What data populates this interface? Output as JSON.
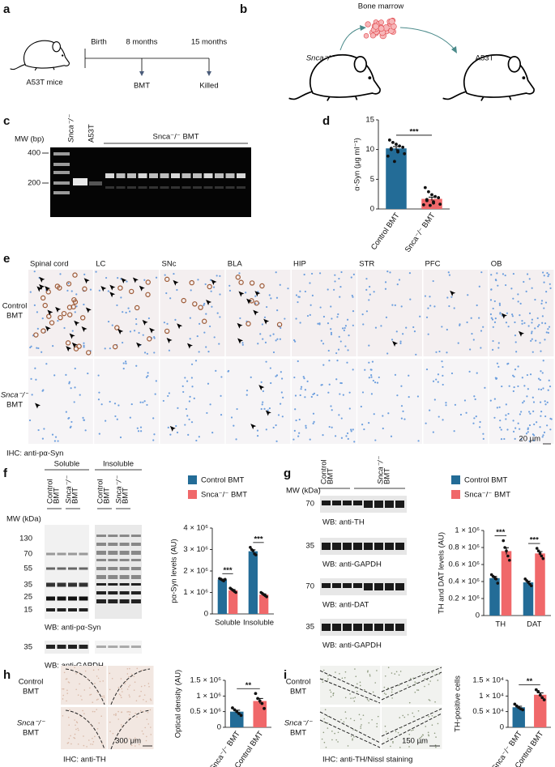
{
  "panel_labels": [
    "a",
    "b",
    "c",
    "d",
    "e",
    "f",
    "g",
    "h",
    "i"
  ],
  "a": {
    "mouse_label": "A53T mice",
    "timeline": [
      {
        "top": "Birth"
      },
      {
        "top": "8 months",
        "bottom": "BMT"
      },
      {
        "top": "15 months",
        "bottom": "Killed"
      }
    ]
  },
  "b": {
    "source": "Bone marrow",
    "donor": "Snca⁻/⁻",
    "recipient": "A53T"
  },
  "c": {
    "axis_label": "MW (bp)",
    "markers": [
      400,
      200
    ],
    "lanes": [
      "Snca⁻/⁻",
      "A53T"
    ],
    "group": "Snca⁻/⁻ BMT"
  },
  "e": {
    "regions": [
      "Spinal cord",
      "LC",
      "SNc",
      "BLA",
      "HIP",
      "STR",
      "PFC",
      "OB"
    ],
    "rows": [
      [
        "Control",
        "BMT"
      ],
      [
        "Snca⁻/⁻",
        "BMT"
      ]
    ],
    "caption": "IHC: anti-pα-Syn",
    "scale": "20 μm"
  },
  "f": {
    "groups": [
      "Soluble",
      "Insoluble"
    ],
    "lanes": [
      [
        "Control",
        "BMT"
      ],
      [
        "Snca⁻/⁻",
        "BMT"
      ]
    ],
    "axis_label": "MW (kDa)",
    "markers": [
      130,
      70,
      55,
      35,
      25,
      15
    ],
    "gapdh_marker": 35,
    "captions": [
      "WB: anti-pα-Syn",
      "WB: anti-GAPDH"
    ]
  },
  "g": {
    "axis_label": "MW (kDa)",
    "lanes": [
      [
        "Control",
        "BMT"
      ],
      [
        "Snca⁻/⁻",
        "BMT"
      ]
    ],
    "blots": [
      {
        "marker": 70,
        "caption": "WB: anti-TH"
      },
      {
        "marker": 35,
        "caption": "WB: anti-GAPDH"
      },
      {
        "marker": 70,
        "caption": "WB: anti-DAT"
      },
      {
        "marker": 35,
        "caption": "WB: anti-GAPDH"
      }
    ]
  },
  "h": {
    "rows": [
      [
        "Control",
        "BMT"
      ],
      [
        "Snca⁻/⁻",
        "BMT"
      ]
    ],
    "scale": "300 μm",
    "caption": "IHC: anti-TH"
  },
  "i": {
    "rows": [
      [
        "Control",
        "BMT"
      ],
      [
        "Snca⁻/⁻",
        "BMT"
      ]
    ],
    "scale": "150 μm",
    "caption": "IHC: anti-TH/Nissl staining"
  },
  "chart_data": [
    {
      "type": "bar",
      "ylabel": "α-Syn (μg ml⁻¹)",
      "categories": [
        "Control BMT",
        "Snca⁻/⁻ BMT"
      ],
      "values": [
        10.2,
        1.7
      ],
      "errors": [
        0.3,
        0.3
      ],
      "colors": [
        "#236c97",
        "#f0686a"
      ],
      "points": [
        [
          11.6,
          11.2,
          10.9,
          10.6,
          10.4,
          10.2,
          10.0,
          9.8,
          9.6,
          9.3,
          8.9,
          8.0
        ],
        [
          3.6,
          2.9,
          2.4,
          2.1,
          1.9,
          1.6,
          1.4,
          1.2,
          1.0,
          0.8,
          0.7,
          0.6
        ]
      ],
      "ylim": [
        0,
        15
      ],
      "yticks": [
        0,
        5,
        10,
        15
      ],
      "annotations": [
        "***"
      ]
    },
    {
      "type": "grouped_bar",
      "ylabel": "pα-Syn levels (AU)",
      "categories": [
        "Soluble",
        "Insoluble"
      ],
      "legend": "top",
      "series": [
        {
          "name": "Control BMT",
          "color": "#236c97",
          "values": [
            1600000,
            2920000
          ],
          "errors": [
            25000,
            65000
          ],
          "points": [
            [
              1650000,
              1620000,
              1580000,
              1540000,
              1610000
            ],
            [
              3100000,
              3000000,
              2950000,
              2800000,
              2750000
            ]
          ]
        },
        {
          "name": "Snca⁻/⁻ BMT",
          "color": "#f0686a",
          "values": [
            1100000,
            900000
          ],
          "errors": [
            35000,
            35000
          ],
          "points": [
            [
              1200000,
              1150000,
              1100000,
              1050000,
              1000000
            ],
            [
              1000000,
              950000,
              900000,
              850000,
              800000
            ]
          ]
        }
      ],
      "ylim": [
        0,
        4000000
      ],
      "yticks": [
        0,
        {
          "value": 1000000,
          "label": "1 × 10⁶"
        },
        {
          "value": 2000000,
          "label": "2 × 10⁶"
        },
        {
          "value": 3000000,
          "label": "3 × 10⁶"
        },
        {
          "value": 4000000,
          "label": "4 × 10⁶"
        }
      ],
      "annotations": [
        "***",
        "***"
      ]
    },
    {
      "type": "grouped_bar",
      "ylabel": "TH and DAT levels (AU)",
      "categories": [
        "TH",
        "DAT"
      ],
      "legend": "top",
      "series": [
        {
          "name": "Control BMT",
          "color": "#236c97",
          "values": [
            440000,
            390000
          ],
          "errors": [
            20000,
            15000
          ],
          "points": [
            [
              480000,
              460000,
              450000,
              430000,
              380000
            ],
            [
              430000,
              410000,
              390000,
              370000,
              350000
            ]
          ]
        },
        {
          "name": "Snca⁻/⁻ BMT",
          "color": "#f0686a",
          "values": [
            758000,
            730000
          ],
          "errors": [
            40000,
            22000
          ],
          "points": [
            [
              880000,
              800000,
              760000,
              700000,
              650000
            ],
            [
              790000,
              760000,
              730000,
              700000,
              670000
            ]
          ]
        }
      ],
      "ylim": [
        0,
        1000000
      ],
      "yticks": [
        0,
        {
          "value": 200000,
          "label": "0.2 × 10⁶"
        },
        {
          "value": 400000,
          "label": "0.4 × 10⁶"
        },
        {
          "value": 600000,
          "label": "0.6 × 10⁶"
        },
        {
          "value": 800000,
          "label": "0.8 × 10⁶"
        },
        {
          "value": 1000000,
          "label": "1 × 10⁶"
        }
      ],
      "annotations": [
        "***",
        "***"
      ]
    },
    {
      "type": "bar",
      "ylabel": "Optical density (AU)",
      "categories": [
        "Snca⁻/⁻ BMT",
        "Control BMT"
      ],
      "values": [
        500000,
        840000
      ],
      "errors": [
        45000,
        80000
      ],
      "colors": [
        "#236c97",
        "#f0686a"
      ],
      "points": [
        [
          620000,
          560000,
          500000,
          440000,
          380000
        ],
        [
          1080000,
          920000,
          840000,
          760000,
          600000
        ]
      ],
      "ylim": [
        0,
        1500000
      ],
      "yticks": [
        0,
        {
          "value": 500000,
          "label": "0.5 × 10⁶"
        },
        {
          "value": 1000000,
          "label": "1 × 10⁶"
        },
        {
          "value": 1500000,
          "label": "1.5 × 10⁶"
        }
      ],
      "annotations": [
        "**"
      ]
    },
    {
      "type": "bar",
      "ylabel": "TH-positive cells",
      "categories": [
        "Snca⁻/⁻ BMT",
        "Control BMT"
      ],
      "values": [
        6400,
        10400
      ],
      "errors": [
        330,
        580
      ],
      "colors": [
        "#236c97",
        "#f0686a"
      ],
      "points": [
        [
          7400,
          6800,
          6300,
          5900,
          5600
        ],
        [
          12000,
          11400,
          10300,
          9500,
          8800
        ]
      ],
      "ylim": [
        0,
        15000
      ],
      "yticks": [
        0,
        {
          "value": 5000,
          "label": "0.5 × 10⁴"
        },
        {
          "value": 10000,
          "label": "1 × 10⁴"
        },
        {
          "value": 15000,
          "label": "1.5 × 10⁴"
        }
      ],
      "annotations": [
        "**"
      ]
    }
  ]
}
